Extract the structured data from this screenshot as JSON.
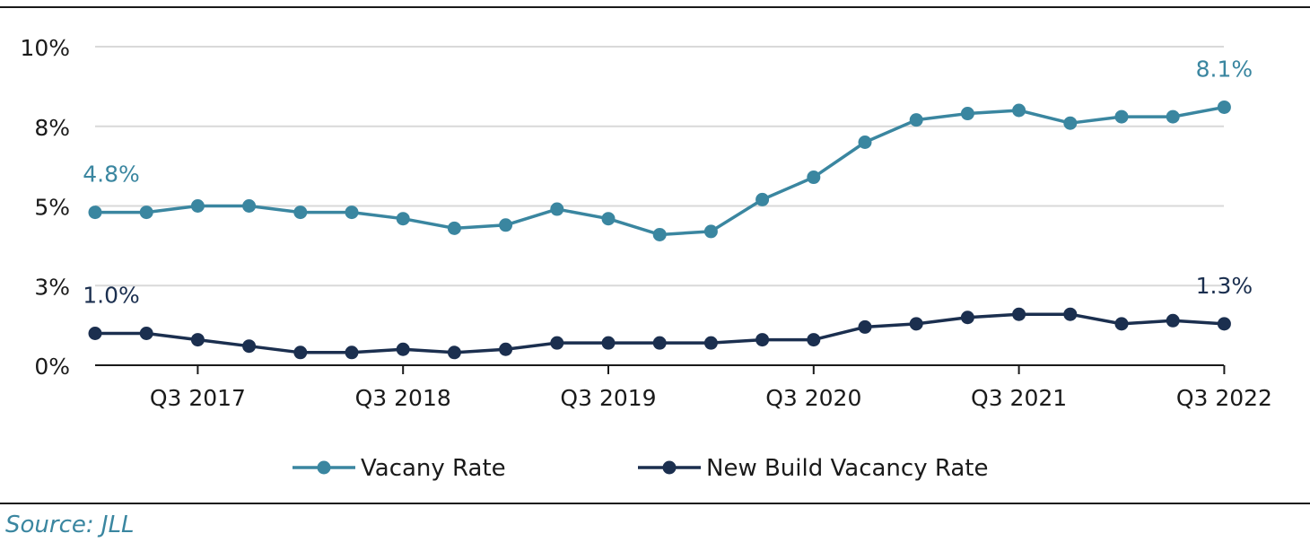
{
  "source": "Source: JLL",
  "colors": {
    "vacancy": "#3a86a0",
    "new_build": "#1b2f4f",
    "grid": "#d9d9d9",
    "axis": "#1a1a1a",
    "text": "#1a1a1a"
  },
  "chart_data": {
    "type": "line",
    "x": [
      "Q1 2017",
      "Q2 2017",
      "Q3 2017",
      "Q4 2017",
      "Q1 2018",
      "Q2 2018",
      "Q3 2018",
      "Q4 2018",
      "Q1 2019",
      "Q2 2019",
      "Q3 2019",
      "Q4 2019",
      "Q1 2020",
      "Q2 2020",
      "Q3 2020",
      "Q4 2020",
      "Q1 2021",
      "Q2 2021",
      "Q3 2021",
      "Q4 2021",
      "Q1 2022",
      "Q2 2022",
      "Q3 2022"
    ],
    "x_tick_labels": [
      "Q3 2017",
      "Q3 2018",
      "Q3 2019",
      "Q3 2020",
      "Q3 2021",
      "Q3 2022"
    ],
    "x_tick_indices": [
      2,
      6,
      10,
      14,
      18,
      22
    ],
    "y_tick_labels": [
      "0%",
      "3%",
      "5%",
      "8%",
      "10%"
    ],
    "y_tick_values": [
      0,
      2.5,
      5,
      7.5,
      10
    ],
    "ylim": [
      0,
      10
    ],
    "grid": true,
    "legend_position": "bottom-center",
    "series": [
      {
        "name": "Vacany Rate",
        "values": [
          4.8,
          4.8,
          5.0,
          5.0,
          4.8,
          4.8,
          4.6,
          4.3,
          4.4,
          4.9,
          4.6,
          4.1,
          4.2,
          5.2,
          5.9,
          7.0,
          7.7,
          7.9,
          8.0,
          7.6,
          7.8,
          7.8,
          8.1
        ]
      },
      {
        "name": "New Build Vacancy Rate",
        "values": [
          1.0,
          1.0,
          0.8,
          0.6,
          0.4,
          0.4,
          0.5,
          0.4,
          0.5,
          0.7,
          0.7,
          0.7,
          0.7,
          0.8,
          0.8,
          1.2,
          1.3,
          1.5,
          1.6,
          1.6,
          1.3,
          1.4,
          1.3
        ]
      }
    ],
    "annotations": [
      {
        "series": 0,
        "index": 0,
        "text": "4.8%"
      },
      {
        "series": 0,
        "index": 22,
        "text": "8.1%"
      },
      {
        "series": 1,
        "index": 0,
        "text": "1.0%"
      },
      {
        "series": 1,
        "index": 22,
        "text": "1.3%"
      }
    ]
  }
}
